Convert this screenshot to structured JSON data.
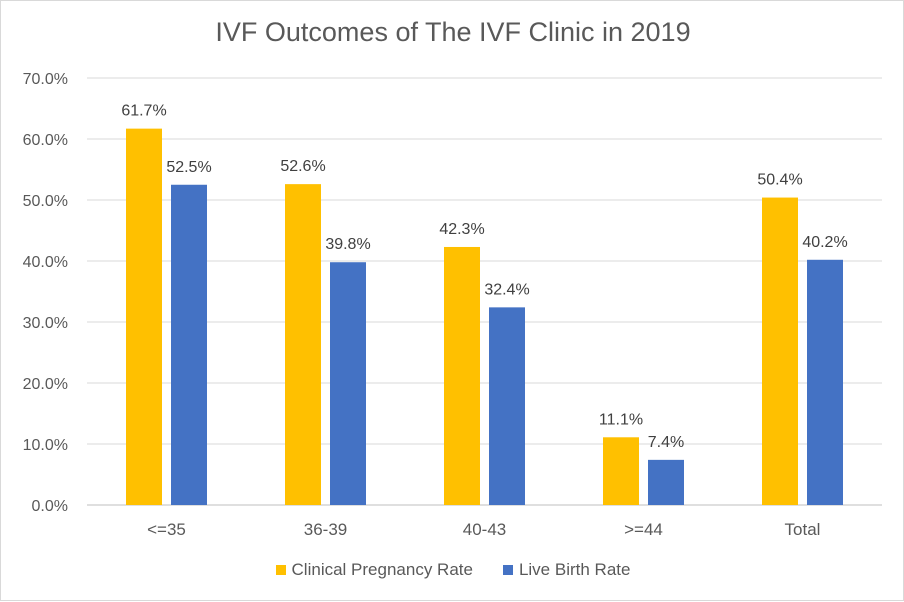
{
  "chart_data": {
    "type": "bar",
    "title": "IVF Outcomes of The IVF Clinic in 2019",
    "xlabel": "",
    "ylabel": "",
    "categories": [
      "<=35",
      "36-39",
      "40-43",
      ">=44",
      "Total"
    ],
    "series": [
      {
        "name": "Clinical Pregnancy Rate",
        "color": "#FFC000",
        "values": [
          61.7,
          52.6,
          42.3,
          11.1,
          50.4
        ],
        "labels": [
          "61.7%",
          "52.6%",
          "42.3%",
          "11.1%",
          "50.4%"
        ]
      },
      {
        "name": "Live Birth Rate",
        "color": "#4472C4",
        "values": [
          52.5,
          39.8,
          32.4,
          7.4,
          40.2
        ],
        "labels": [
          "52.5%",
          "39.8%",
          "32.4%",
          "7.4%",
          "40.2%"
        ]
      }
    ],
    "ylim": [
      0,
      70
    ],
    "yticks": [
      "0.0%",
      "10.0%",
      "20.0%",
      "30.0%",
      "40.0%",
      "50.0%",
      "60.0%",
      "70.0%"
    ],
    "grid": true,
    "legend_position": "bottom"
  }
}
